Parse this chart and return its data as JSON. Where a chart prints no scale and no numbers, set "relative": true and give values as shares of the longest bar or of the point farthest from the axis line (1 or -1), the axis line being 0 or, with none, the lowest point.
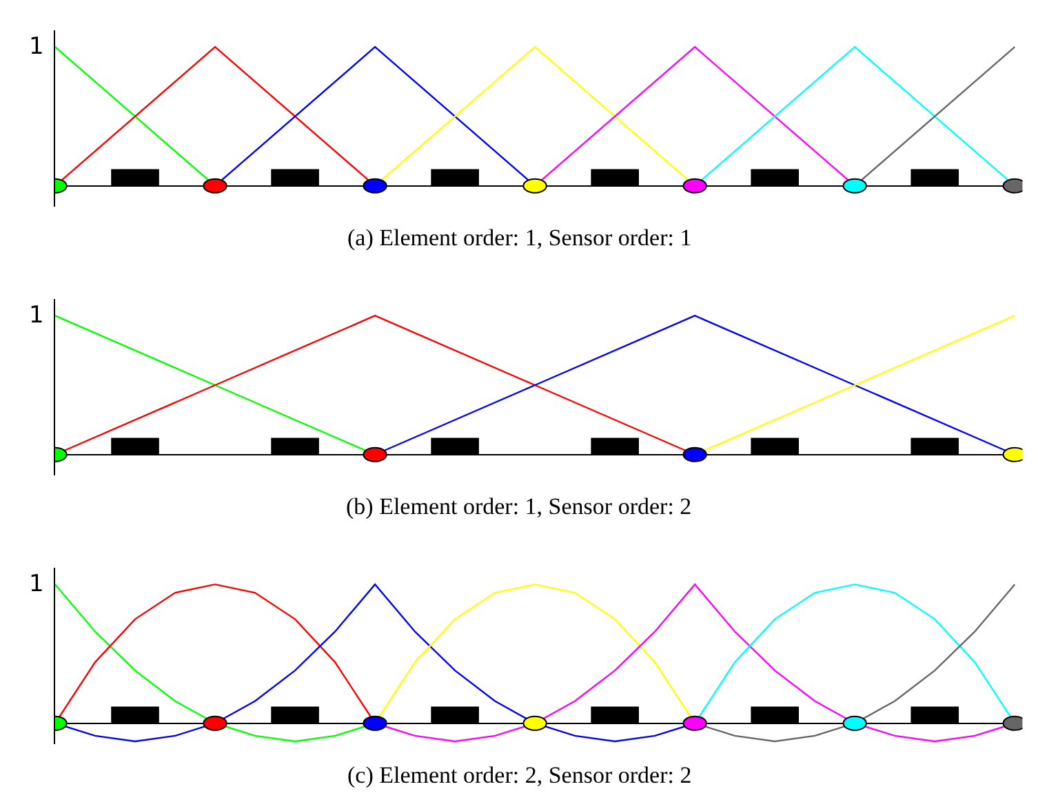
{
  "chart_data": [
    {
      "type": "line",
      "relative": true,
      "title": "(a) Element order: 1, Sensor order: 1",
      "annotations": [
        "1"
      ],
      "categories": [
        null,
        null,
        null,
        null,
        null,
        null,
        null
      ],
      "series": [
        {
          "color": "#00ff00",
          "values": [
            1,
            0,
            null,
            null,
            null,
            null,
            null
          ]
        },
        {
          "color": "#ff0000",
          "values": [
            0,
            1,
            0,
            null,
            null,
            null,
            null
          ]
        },
        {
          "color": "#0000ff",
          "values": [
            null,
            0,
            1,
            0,
            null,
            null,
            null
          ]
        },
        {
          "color": "#ffff00",
          "values": [
            null,
            null,
            0,
            1,
            0,
            null,
            null
          ]
        },
        {
          "color": "#ff00ff",
          "values": [
            null,
            null,
            null,
            0,
            1,
            0,
            null
          ]
        },
        {
          "color": "#00ffff",
          "values": [
            null,
            null,
            null,
            null,
            0,
            1,
            0
          ]
        },
        {
          "color": "#666666",
          "values": [
            null,
            null,
            null,
            null,
            null,
            0,
            1
          ]
        }
      ]
    },
    {
      "type": "line",
      "relative": true,
      "title": "(b) Element order: 1, Sensor order: 2",
      "annotations": [
        "1"
      ],
      "categories": [
        null,
        null,
        null,
        null,
        null,
        null,
        null
      ],
      "series": [
        {
          "color": "#00ff00",
          "values": [
            1,
            0.5,
            0,
            null,
            null,
            null,
            null
          ]
        },
        {
          "color": "#ff0000",
          "values": [
            0,
            0.5,
            1,
            0.5,
            0,
            null,
            null
          ]
        },
        {
          "color": "#0000ff",
          "values": [
            null,
            null,
            0,
            0.5,
            1,
            0.5,
            0
          ]
        },
        {
          "color": "#ffff00",
          "values": [
            null,
            null,
            null,
            null,
            0,
            0.5,
            1
          ]
        }
      ]
    },
    {
      "type": "line",
      "relative": true,
      "title": "(c) Element order: 2, Sensor order: 2",
      "annotations": [
        "1"
      ],
      "categories": [
        null,
        null,
        null,
        null,
        null,
        null,
        null,
        null,
        null,
        null,
        null,
        null,
        null,
        null,
        null,
        null,
        null,
        null,
        null,
        null,
        null,
        null,
        null,
        null,
        null
      ],
      "series": [
        {
          "color": "#00ff00",
          "values": [
            1,
            0.66,
            0.38,
            0.16,
            0,
            -0.09,
            -0.13,
            -0.09,
            0,
            null,
            null,
            null,
            null,
            null,
            null,
            null,
            null,
            null,
            null,
            null,
            null,
            null,
            null,
            null,
            null
          ]
        },
        {
          "color": "#ff0000",
          "values": [
            0,
            0.44,
            0.75,
            0.94,
            1,
            0.94,
            0.75,
            0.44,
            0,
            null,
            null,
            null,
            null,
            null,
            null,
            null,
            null,
            null,
            null,
            null,
            null,
            null,
            null,
            null,
            null
          ]
        },
        {
          "color": "#0000ff",
          "values": [
            0,
            -0.09,
            -0.13,
            -0.09,
            0,
            0.16,
            0.38,
            0.66,
            1,
            0.66,
            0.38,
            0.16,
            0,
            -0.09,
            -0.13,
            -0.09,
            0,
            null,
            null,
            null,
            null,
            null,
            null,
            null,
            null
          ]
        },
        {
          "color": "#ffff00",
          "values": [
            null,
            null,
            null,
            null,
            null,
            null,
            null,
            null,
            0,
            0.44,
            0.75,
            0.94,
            1,
            0.94,
            0.75,
            0.44,
            0,
            null,
            null,
            null,
            null,
            null,
            null,
            null,
            null
          ]
        },
        {
          "color": "#ff00ff",
          "values": [
            null,
            null,
            null,
            null,
            null,
            null,
            null,
            null,
            0,
            -0.09,
            -0.13,
            -0.09,
            0,
            0.16,
            0.38,
            0.66,
            1,
            0.66,
            0.38,
            0.16,
            0,
            -0.09,
            -0.13,
            -0.09,
            0
          ]
        },
        {
          "color": "#00ffff",
          "values": [
            null,
            null,
            null,
            null,
            null,
            null,
            null,
            null,
            null,
            null,
            null,
            null,
            null,
            null,
            null,
            null,
            0,
            0.44,
            0.75,
            0.94,
            1,
            0.94,
            0.75,
            0.44,
            0
          ]
        },
        {
          "color": "#666666",
          "values": [
            null,
            null,
            null,
            null,
            null,
            null,
            null,
            null,
            null,
            null,
            null,
            null,
            null,
            null,
            null,
            null,
            0,
            -0.09,
            -0.13,
            -0.09,
            0,
            0.16,
            0.38,
            0.66,
            1
          ]
        }
      ]
    }
  ]
}
